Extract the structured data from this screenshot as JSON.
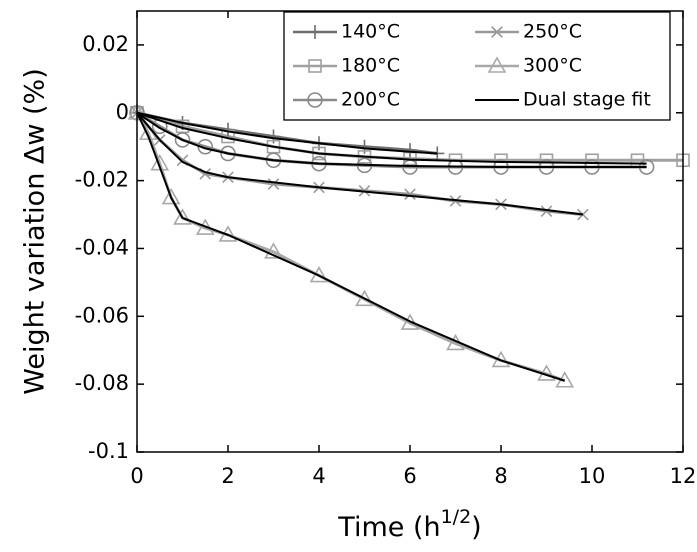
{
  "chart_data": {
    "type": "line",
    "ylabel": "Weight variation  Δw  (%)",
    "xlabel_parts": [
      "Time (h",
      "1/2",
      ")"
    ],
    "xlim": [
      0,
      12
    ],
    "ylim": [
      -0.1,
      0.03
    ],
    "xticks": [
      0,
      2,
      4,
      6,
      8,
      10,
      12
    ],
    "yticks": [
      -0.1,
      -0.08,
      -0.06,
      -0.04,
      -0.02,
      0,
      0.02
    ],
    "legend": "top-right",
    "series": [
      {
        "name": "140°C",
        "color": "#6e6e6e",
        "marker": "plus",
        "x": [
          0,
          1,
          2,
          3,
          4,
          5,
          6,
          6.6
        ],
        "values": [
          0,
          -0.003,
          -0.005,
          -0.007,
          -0.009,
          -0.01,
          -0.011,
          -0.012
        ]
      },
      {
        "name": "180°C",
        "color": "#a0a0a0",
        "marker": "square",
        "x": [
          0,
          1,
          2,
          3,
          4,
          5,
          6,
          7,
          8,
          9,
          10,
          11,
          12
        ],
        "values": [
          0,
          -0.004,
          -0.007,
          -0.01,
          -0.012,
          -0.013,
          -0.0135,
          -0.014,
          -0.014,
          -0.014,
          -0.014,
          -0.014,
          -0.014
        ]
      },
      {
        "name": "200°C",
        "color": "#8a8a8a",
        "marker": "circle",
        "x": [
          0,
          0.5,
          1,
          1.5,
          2,
          3,
          4,
          5,
          6,
          7,
          8,
          9,
          10,
          11.2
        ],
        "values": [
          0,
          -0.004,
          -0.008,
          -0.01,
          -0.012,
          -0.014,
          -0.015,
          -0.0155,
          -0.016,
          -0.016,
          -0.016,
          -0.016,
          -0.016,
          -0.016
        ]
      },
      {
        "name": "250°C",
        "color": "#999999",
        "marker": "x",
        "x": [
          0,
          0.5,
          1,
          1.5,
          2,
          3,
          4,
          5,
          6,
          7,
          8,
          9,
          9.8
        ],
        "values": [
          0,
          -0.008,
          -0.014,
          -0.018,
          -0.019,
          -0.021,
          -0.022,
          -0.023,
          -0.024,
          -0.026,
          -0.027,
          -0.029,
          -0.03
        ]
      },
      {
        "name": "300°C",
        "color": "#a8a8a8",
        "marker": "triangle",
        "x": [
          0,
          0.25,
          0.5,
          0.75,
          1,
          1.5,
          2,
          3,
          4,
          5,
          6,
          7,
          8,
          9,
          9.4
        ],
        "values": [
          0,
          -0.006,
          -0.015,
          -0.025,
          -0.031,
          -0.034,
          -0.036,
          -0.041,
          -0.048,
          -0.055,
          -0.062,
          -0.068,
          -0.073,
          -0.077,
          -0.079
        ]
      }
    ],
    "fit": {
      "name": "Dual stage fit",
      "color": "#000000",
      "lines": [
        {
          "x": [
            0,
            1,
            2,
            3,
            4,
            5,
            6,
            6.6
          ],
          "values": [
            0,
            -0.003,
            -0.0055,
            -0.0075,
            -0.009,
            -0.0105,
            -0.0115,
            -0.012
          ]
        },
        {
          "x": [
            0,
            1,
            2,
            3,
            4,
            6,
            8,
            10,
            11.2
          ],
          "values": [
            0,
            -0.0045,
            -0.0075,
            -0.01,
            -0.012,
            -0.0138,
            -0.0145,
            -0.0148,
            -0.015
          ]
        },
        {
          "x": [
            0,
            0.5,
            1,
            1.5,
            2,
            3,
            4,
            6,
            8,
            10,
            11.2
          ],
          "values": [
            0,
            -0.0045,
            -0.008,
            -0.0105,
            -0.012,
            -0.014,
            -0.015,
            -0.0157,
            -0.016,
            -0.016,
            -0.016
          ]
        },
        {
          "x": [
            0,
            0.5,
            1,
            1.5,
            2,
            4,
            6,
            8,
            9.8
          ],
          "values": [
            0,
            -0.008,
            -0.0145,
            -0.0175,
            -0.019,
            -0.022,
            -0.0245,
            -0.027,
            -0.03
          ]
        },
        {
          "x": [
            0,
            0.25,
            0.5,
            0.75,
            1,
            1.5,
            2,
            4,
            6,
            8,
            9.4
          ],
          "values": [
            0,
            -0.007,
            -0.016,
            -0.025,
            -0.031,
            -0.0335,
            -0.036,
            -0.048,
            -0.0615,
            -0.073,
            -0.079
          ]
        }
      ]
    }
  }
}
